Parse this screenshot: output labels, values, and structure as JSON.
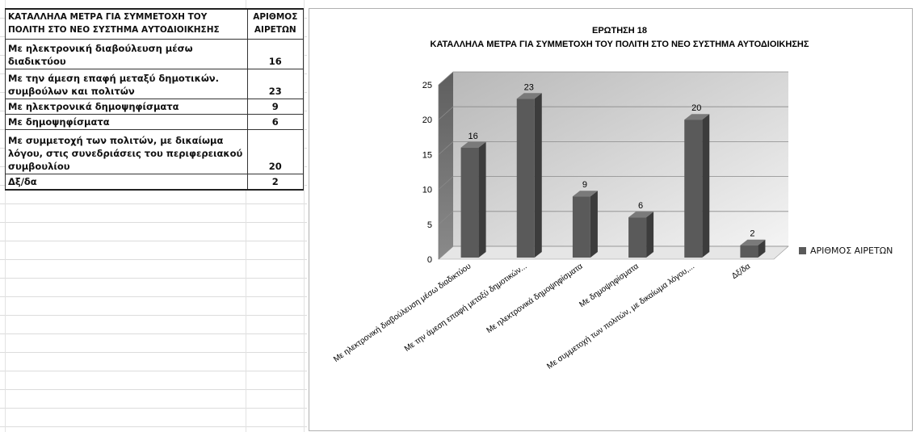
{
  "table": {
    "header_label": "ΚΑΤΑΛΛΗΛΑ ΜΕΤΡΑ ΓΙΑ ΣΥΜΜΕΤΟΧΗ ΤΟΥ ΠΟΛΙΤΗ ΣΤΟ ΝΕΟ ΣΥΣΤΗΜΑ ΑΥΤΟΔΙΟΙΚΗΣΗΣ",
    "header_value": "ΑΡΙΘΜΟΣ ΑΙΡΕΤΩΝ",
    "rows": [
      {
        "label": "Με ηλεκτρονική διαβούλευση μέσω διαδικτύου",
        "value": "16"
      },
      {
        "label": "Με την άμεση επαφή μεταξύ δημοτικών. συμβούλων και πολιτών",
        "value": "23"
      },
      {
        "label": "Με ηλεκτρονικά δημοψηφίσματα",
        "value": "9"
      },
      {
        "label": "Με δημοψηφίσματα",
        "value": "6"
      },
      {
        "label": "Με συμμετοχή των πολιτών, με δικαίωμα λόγου, στις συνεδριάσεις του περιφερειακού συμβουλίου",
        "value": "20"
      },
      {
        "label": "Δξ/δα",
        "value": "2"
      }
    ]
  },
  "chart_data": {
    "type": "bar",
    "title": "ΕΡΩΤΗΣΗ 18",
    "subtitle": "ΚΑΤΑΛΛΗΛΑ ΜΕΤΡΑ ΓΙΑ ΣΥΜΜΕΤΟΧΗ ΤΟΥ ΠΟΛΙΤΗ ΣΤΟ ΝΕΟ ΣΥΣΤΗΜΑ ΑΥΤΟΔΙΟΙΚΗΣΗΣ",
    "categories": [
      "Με ηλεκτρονική διαβούλευση μέσω διαδικτύου",
      "Με την άμεση επαφή μεταξύ δημοτικών...",
      "Με ηλεκτρονικά δημοψηφίσματα",
      "Με δημοψηφίσματα",
      "Με συμμετοχή των πολιτών, με δικαίωμα λόγου,...",
      "Δξ/δα"
    ],
    "series": [
      {
        "name": "ΑΡΙΘΜΟΣ ΑΙΡΕΤΩΝ",
        "values": [
          16,
          23,
          9,
          6,
          20,
          2
        ]
      }
    ],
    "ylim": [
      0,
      25
    ],
    "yticks": [
      0,
      5,
      10,
      15,
      20,
      25
    ],
    "grid": true,
    "legend": "right",
    "bar_color": "#5a5a5a"
  }
}
